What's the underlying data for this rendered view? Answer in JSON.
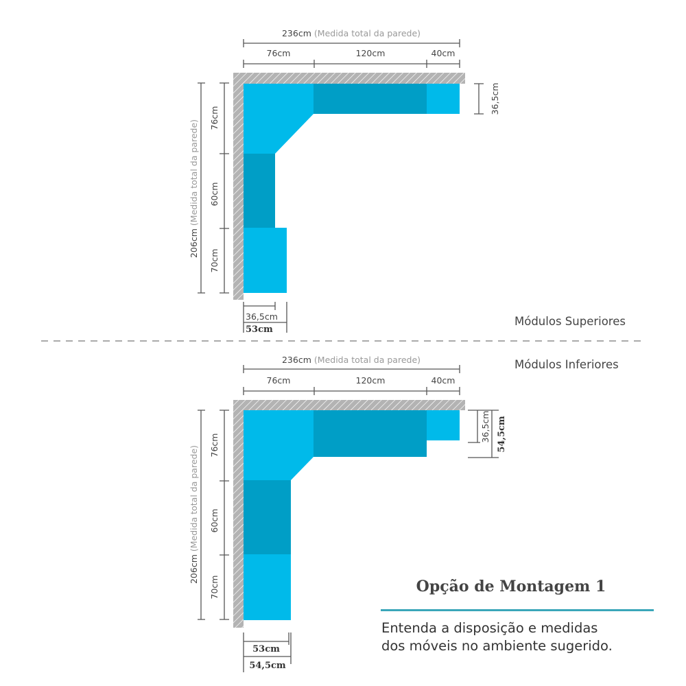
{
  "colors": {
    "light_module": "#00baea",
    "dark_module": "#009ec6",
    "wall": "#b3b3b3",
    "accent_rule": "#3aa6b9"
  },
  "upper": {
    "section_label": "Módulos Superiores",
    "total_width": "236cm",
    "total_width_note": "(Medida total da parede)",
    "widths": [
      "76cm",
      "120cm",
      "40cm"
    ],
    "depth_right": "36,5cm",
    "total_height": "206cm",
    "total_height_note": "(Medida total da parede)",
    "heights": [
      "76cm",
      "60cm",
      "70cm"
    ],
    "bottom_depths": [
      "36,5cm",
      "53cm"
    ]
  },
  "lower": {
    "section_label": "Módulos Inferiores",
    "total_width": "236cm",
    "total_width_note": "(Medida total da parede)",
    "widths": [
      "76cm",
      "120cm",
      "40cm"
    ],
    "depth_right": [
      "36,5cm",
      "54,5cm"
    ],
    "total_height": "206cm",
    "total_height_note": "(Medida total da parede)",
    "heights": [
      "76cm",
      "60cm",
      "70cm"
    ],
    "bottom_depths": [
      "53cm",
      "54,5cm"
    ]
  },
  "caption": {
    "title": "Opção de Montagem 1",
    "line1": "Entenda a disposição e medidas",
    "line2": "dos móveis no ambiente sugerido."
  }
}
